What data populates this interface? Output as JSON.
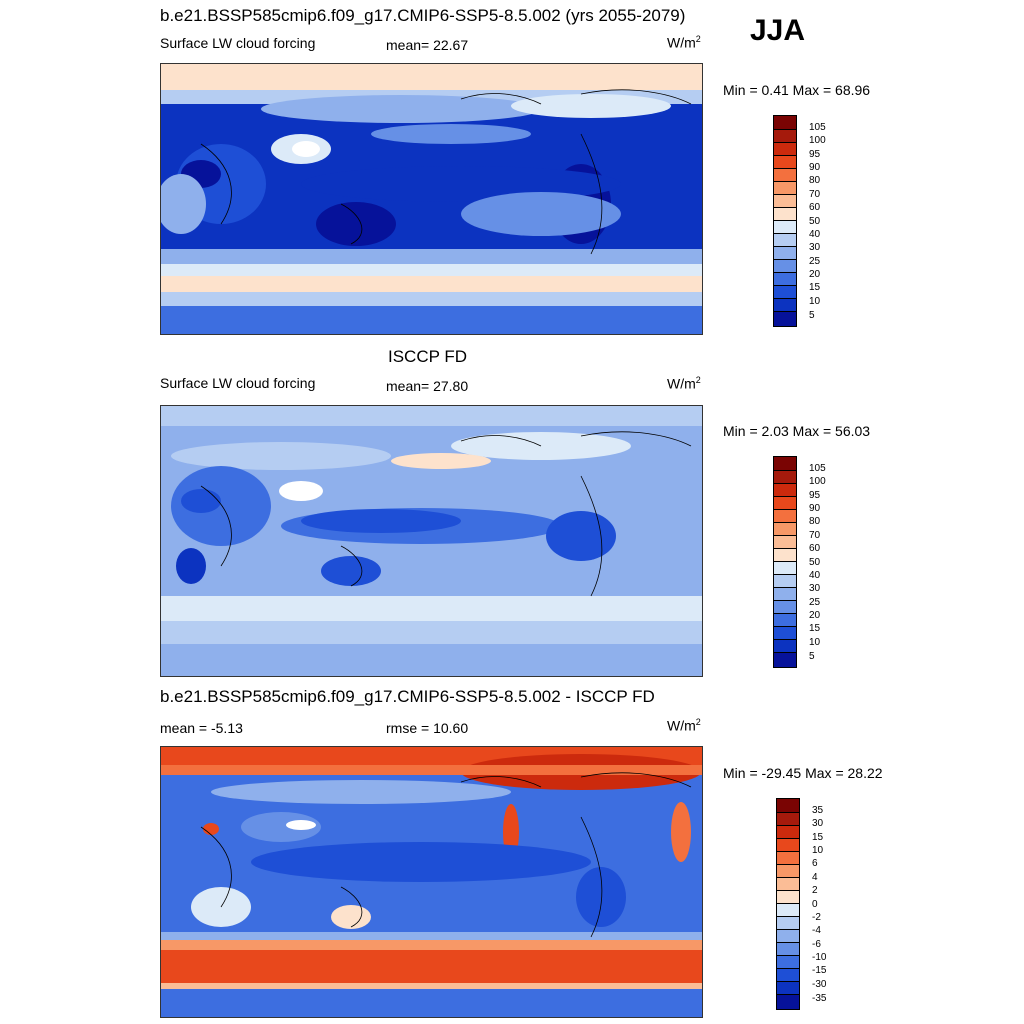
{
  "season": "JJA",
  "panels": [
    {
      "title": "b.e21.BSSP585cmip6.f09_g17.CMIP6-SSP5-8.5.002 (yrs 2055-2079)",
      "left_label": "Surface LW cloud forcing",
      "mid_label": "mean=  22.67",
      "units": "W/m",
      "units_sup": "2",
      "minmax": "Min =   0.41 Max =  68.96",
      "colorbar": {
        "ticks": [
          "105",
          "100",
          "95",
          "90",
          "80",
          "70",
          "60",
          "50",
          "40",
          "30",
          "25",
          "20",
          "15",
          "10",
          "5"
        ],
        "colors": [
          "#7a0403",
          "#a51a0c",
          "#cc2a0d",
          "#e8481c",
          "#f3703e",
          "#f79867",
          "#fbbd96",
          "#fde2cc",
          "#dceaf8",
          "#b5cdf2",
          "#8fb0ec",
          "#6690e6",
          "#3d6ee0",
          "#1e4fd6",
          "#0c33c0",
          "#06129a"
        ]
      }
    },
    {
      "title": "ISCCP FD",
      "left_label": "Surface LW cloud forcing",
      "mid_label": "mean=  27.80",
      "units": "W/m",
      "units_sup": "2",
      "minmax": "Min =   2.03 Max =  56.03",
      "colorbar": {
        "ticks": [
          "105",
          "100",
          "95",
          "90",
          "80",
          "70",
          "60",
          "50",
          "40",
          "30",
          "25",
          "20",
          "15",
          "10",
          "5"
        ],
        "colors": [
          "#7a0403",
          "#a51a0c",
          "#cc2a0d",
          "#e8481c",
          "#f3703e",
          "#f79867",
          "#fbbd96",
          "#fde2cc",
          "#dceaf8",
          "#b5cdf2",
          "#8fb0ec",
          "#6690e6",
          "#3d6ee0",
          "#1e4fd6",
          "#0c33c0",
          "#06129a"
        ]
      }
    },
    {
      "title": "b.e21.BSSP585cmip6.f09_g17.CMIP6-SSP5-8.5.002 - ISCCP FD",
      "left_label": "mean =  -5.13",
      "mid_label": "rmse =  10.60",
      "units": "W/m",
      "units_sup": "2",
      "minmax": "Min = -29.45 Max =  28.22",
      "colorbar": {
        "ticks": [
          "35",
          "30",
          "15",
          "10",
          "6",
          "4",
          "2",
          "0",
          "-2",
          "-4",
          "-6",
          "-10",
          "-15",
          "-30",
          "-35"
        ],
        "colors": [
          "#7a0403",
          "#a51a0c",
          "#cc2a0d",
          "#e8481c",
          "#f3703e",
          "#f79867",
          "#fbbd96",
          "#fde2cc",
          "#dceaf8",
          "#b5cdf2",
          "#8fb0ec",
          "#6690e6",
          "#3d6ee0",
          "#1e4fd6",
          "#0c33c0",
          "#06129a"
        ]
      }
    }
  ]
}
